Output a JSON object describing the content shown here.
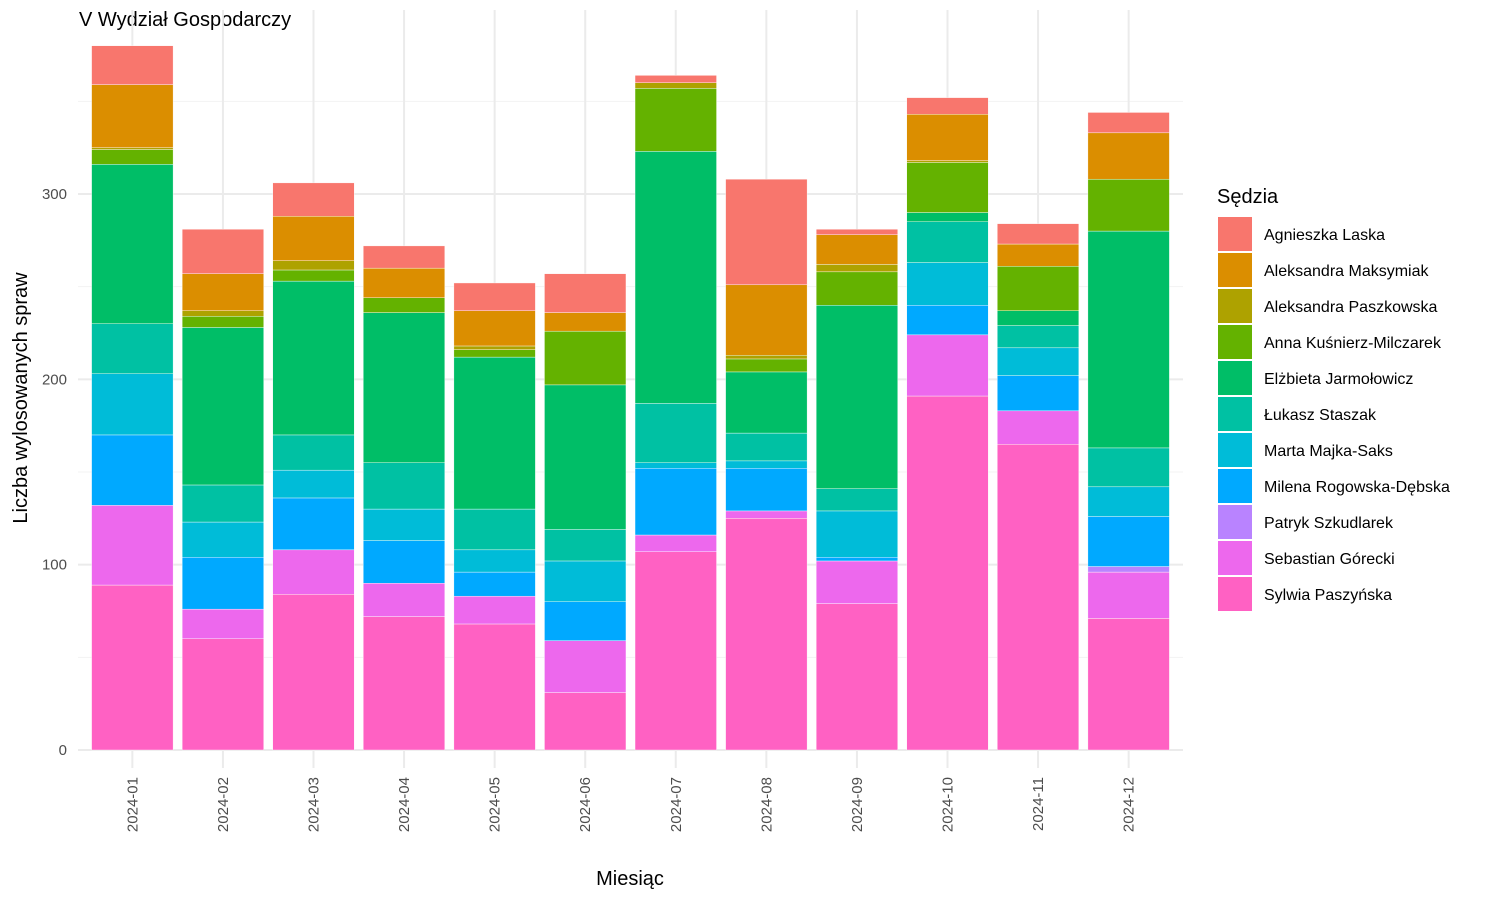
{
  "chart_data": {
    "type": "bar",
    "stacked": true,
    "title": "V Wydział Gospodarczy",
    "xlabel": "Miesiąc",
    "ylabel": "Liczba wylosowanych spraw",
    "ylim": [
      0,
      380
    ],
    "yticks": [
      0,
      100,
      200,
      300
    ],
    "grid": true,
    "legend_title": "Sędzia",
    "legend_position": "right",
    "categories": [
      "2024-01",
      "2024-02",
      "2024-03",
      "2024-04",
      "2024-05",
      "2024-06",
      "2024-07",
      "2024-08",
      "2024-09",
      "2024-10",
      "2024-11",
      "2024-12"
    ],
    "series": [
      {
        "name": "Sylwia Paszyńska",
        "color": "#FF61C3",
        "values": [
          89,
          60,
          84,
          72,
          68,
          31,
          107,
          125,
          79,
          191,
          165,
          71
        ]
      },
      {
        "name": "Sebastian Górecki",
        "color": "#ED68ED",
        "values": [
          43,
          16,
          24,
          18,
          15,
          28,
          9,
          4,
          23,
          33,
          18,
          25
        ]
      },
      {
        "name": "Patryk Szkudlarek",
        "color": "#B983FF",
        "values": [
          0,
          0,
          0,
          0,
          0,
          0,
          0,
          0,
          0,
          0,
          0,
          3
        ]
      },
      {
        "name": "Milena Rogowska-Dębska",
        "color": "#00A9FF",
        "values": [
          38,
          28,
          28,
          23,
          13,
          21,
          36,
          23,
          2,
          16,
          19,
          27
        ]
      },
      {
        "name": "Marta Majka-Saks",
        "color": "#00BCD8",
        "values": [
          33,
          19,
          15,
          17,
          12,
          22,
          3,
          4,
          25,
          23,
          15,
          16
        ]
      },
      {
        "name": "Łukasz Staszak",
        "color": "#00C1A3",
        "values": [
          27,
          20,
          19,
          25,
          22,
          17,
          32,
          15,
          12,
          22,
          12,
          21
        ]
      },
      {
        "name": "Elżbieta Jarmołowicz",
        "color": "#00BE67",
        "values": [
          86,
          85,
          83,
          81,
          82,
          78,
          136,
          33,
          99,
          5,
          8,
          117
        ]
      },
      {
        "name": "Anna Kuśnierz-Milczarek",
        "color": "#64B200",
        "values": [
          8,
          6,
          6,
          8,
          4,
          29,
          34,
          7,
          18,
          27,
          24,
          28
        ]
      },
      {
        "name": "Aleksandra Paszkowska",
        "color": "#AEA200",
        "values": [
          1,
          3,
          5,
          0,
          2,
          0,
          3,
          2,
          4,
          1,
          0,
          0
        ]
      },
      {
        "name": "Aleksandra Maksymiak",
        "color": "#DB8E00",
        "values": [
          34,
          20,
          24,
          16,
          19,
          10,
          0,
          38,
          16,
          25,
          12,
          25
        ]
      },
      {
        "name": "Agnieszka Laska",
        "color": "#F8766D",
        "values": [
          21,
          24,
          18,
          12,
          15,
          21,
          4,
          57,
          3,
          9,
          11,
          11
        ]
      }
    ]
  }
}
